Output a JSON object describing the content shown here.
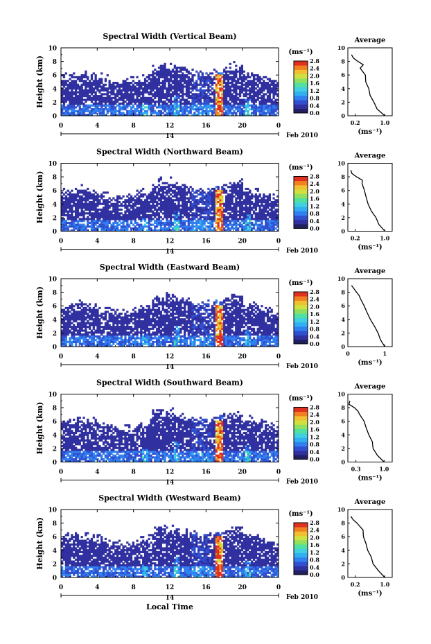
{
  "figure": {
    "xlabel": "Local Time",
    "date_label": "Feb 2010",
    "day_label": "14",
    "colorbar_unit": "(ms⁻¹)",
    "colorbar_ticks": [
      "2.8",
      "2.4",
      "2.0",
      "1.6",
      "1.2",
      "0.8",
      "0.4",
      "0.0"
    ],
    "colormap": [
      "#202060",
      "#3030a0",
      "#3050d0",
      "#3080f0",
      "#30b0f0",
      "#40d0e0",
      "#50e0a0",
      "#90e060",
      "#d0e040",
      "#f0c030",
      "#f08020",
      "#e03020"
    ],
    "profile_title": "Average",
    "profile_xlabel": "(ms⁻¹)"
  },
  "chart_data": [
    {
      "type": "heatmap",
      "title": "Spectral Width (Vertical Beam)",
      "ylabel": "Height (km)",
      "xticks": [
        "0",
        "4",
        "8",
        "12",
        "16",
        "20",
        "0"
      ],
      "yticks": [
        "0",
        "2",
        "4",
        "6",
        "8",
        "10"
      ],
      "xlim": [
        0,
        24
      ],
      "ylim": [
        0,
        10
      ],
      "zlim": [
        0.0,
        2.8
      ],
      "profile": {
        "xticks": [
          "0.2",
          "1.0"
        ],
        "xlim": [
          0.0,
          1.2
        ],
        "height": [
          0,
          1,
          2,
          3,
          4,
          5,
          6,
          7,
          7.5,
          8,
          8.5,
          9
        ],
        "value": [
          1.0,
          0.8,
          0.7,
          0.6,
          0.55,
          0.5,
          0.45,
          0.35,
          0.4,
          0.25,
          0.15,
          0.1
        ]
      }
    },
    {
      "type": "heatmap",
      "title": "Spectral Width (Northward Beam)",
      "ylabel": "Height (km)",
      "xticks": [
        "0",
        "4",
        "8",
        "12",
        "16",
        "20",
        "0"
      ],
      "yticks": [
        "0",
        "2",
        "4",
        "6",
        "8",
        "10"
      ],
      "xlim": [
        0,
        24
      ],
      "ylim": [
        0,
        10
      ],
      "zlim": [
        0.0,
        2.8
      ],
      "profile": {
        "xticks": [
          "0.2",
          "1.0"
        ],
        "xlim": [
          0.0,
          1.2
        ],
        "height": [
          0,
          1,
          2,
          3,
          4,
          5,
          6,
          7,
          7.5,
          8,
          8.5,
          9
        ],
        "value": [
          1.0,
          0.85,
          0.75,
          0.65,
          0.55,
          0.5,
          0.45,
          0.4,
          0.4,
          0.25,
          0.12,
          0.08
        ]
      }
    },
    {
      "type": "heatmap",
      "title": "Spectral Width (Eastward Beam)",
      "ylabel": "Height (km)",
      "xticks": [
        "0",
        "4",
        "8",
        "12",
        "16",
        "20",
        "0"
      ],
      "yticks": [
        "0",
        "2",
        "4",
        "6",
        "8",
        "10"
      ],
      "xlim": [
        0,
        24
      ],
      "ylim": [
        0,
        10
      ],
      "zlim": [
        0.0,
        2.8
      ],
      "profile": {
        "xticks": [
          "0",
          "1"
        ],
        "xlim": [
          0.0,
          1.2
        ],
        "height": [
          0,
          1,
          2,
          3,
          4,
          5,
          6,
          7,
          7.5,
          8,
          8.5,
          9
        ],
        "value": [
          1.0,
          0.9,
          0.8,
          0.7,
          0.6,
          0.5,
          0.45,
          0.35,
          0.3,
          0.25,
          0.15,
          0.1
        ]
      }
    },
    {
      "type": "heatmap",
      "title": "Spectral Width (Southward Beam)",
      "ylabel": "Height (km)",
      "xticks": [
        "0",
        "4",
        "8",
        "12",
        "16",
        "20",
        "0"
      ],
      "yticks": [
        "0",
        "2",
        "4",
        "6",
        "8",
        "10"
      ],
      "xlim": [
        0,
        24
      ],
      "ylim": [
        0,
        10
      ],
      "zlim": [
        0.0,
        2.8
      ],
      "profile": {
        "xticks": [
          "0.3",
          "1.0"
        ],
        "xlim": [
          0.1,
          1.2
        ],
        "height": [
          0,
          1,
          2,
          3,
          4,
          5,
          6,
          7,
          7.5,
          8,
          8.5,
          9
        ],
        "value": [
          1.0,
          0.85,
          0.75,
          0.7,
          0.6,
          0.55,
          0.5,
          0.4,
          0.35,
          0.25,
          0.15,
          0.15
        ]
      }
    },
    {
      "type": "heatmap",
      "title": "Spectral Width (Westward Beam)",
      "ylabel": "Height (km)",
      "xticks": [
        "0",
        "4",
        "8",
        "12",
        "16",
        "20",
        "0"
      ],
      "yticks": [
        "0",
        "2",
        "4",
        "6",
        "8",
        "10"
      ],
      "xlim": [
        0,
        24
      ],
      "ylim": [
        0,
        10
      ],
      "zlim": [
        0.0,
        2.8
      ],
      "profile": {
        "xticks": [
          "0.2",
          "1.0"
        ],
        "xlim": [
          0.0,
          1.2
        ],
        "height": [
          0,
          1,
          2,
          3,
          4,
          5,
          6,
          7,
          7.5,
          8,
          8.5,
          9
        ],
        "value": [
          1.0,
          0.85,
          0.7,
          0.65,
          0.55,
          0.5,
          0.4,
          0.4,
          0.35,
          0.25,
          0.12,
          0.08
        ]
      }
    }
  ]
}
